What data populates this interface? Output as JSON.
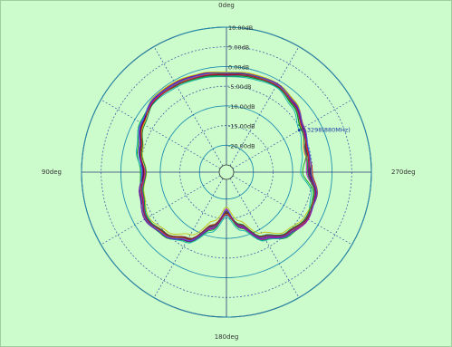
{
  "chart_data": {
    "type": "polar_line",
    "radial_scale": {
      "rings": [
        {
          "value": 10,
          "label": "10.00dB"
        },
        {
          "value": 5,
          "label": "5.00dB"
        },
        {
          "value": 0,
          "label": "0.00dB"
        },
        {
          "value": -5,
          "label": "-5.00dB"
        },
        {
          "value": -10,
          "label": "-10.00dB"
        },
        {
          "value": -15,
          "label": "-15.00dB"
        },
        {
          "value": -20,
          "label": "-20.00dB"
        }
      ],
      "min": -25,
      "max": 10
    },
    "angle_labels": [
      {
        "deg": 0,
        "label": "0deg"
      },
      {
        "deg": 90,
        "label": "90deg"
      },
      {
        "deg": 180,
        "label": "180deg"
      },
      {
        "deg": 270,
        "label": "270deg"
      }
    ],
    "angle_direction": "counterclockwise",
    "grid": true,
    "marker": {
      "text": "-0.3298(880MHz)",
      "angle_deg": 300,
      "value": -5.5,
      "color": "#1a3aa8"
    },
    "angles_deg": [
      0,
      15,
      30,
      45,
      60,
      75,
      90,
      105,
      120,
      135,
      150,
      165,
      180,
      195,
      210,
      225,
      240,
      255,
      270,
      285,
      300,
      315,
      330,
      345
    ],
    "series": [
      {
        "color": "#1010c0",
        "values": [
          -2.0,
          -1.5,
          -1.0,
          -0.8,
          -2.0,
          -4.0,
          -6.0,
          -4.5,
          -3.0,
          -4.5,
          -7.0,
          -12.0,
          -16.0,
          -12.5,
          -7.5,
          -4.5,
          -3.0,
          -3.5,
          -6.0,
          -5.5,
          -4.5,
          -2.5,
          -1.0,
          -1.5
        ]
      },
      {
        "color": "#d01010",
        "values": [
          -1.5,
          -1.0,
          -0.5,
          -0.5,
          -2.5,
          -4.5,
          -5.5,
          -4.0,
          -3.5,
          -5.0,
          -7.5,
          -13.0,
          -17.0,
          -13.0,
          -8.0,
          -5.0,
          -3.5,
          -3.0,
          -5.0,
          -5.5,
          -4.0,
          -2.0,
          -1.0,
          -1.2
        ]
      },
      {
        "color": "#10a010",
        "values": [
          -2.5,
          -2.0,
          -1.5,
          -1.0,
          -1.5,
          -3.5,
          -5.0,
          -4.5,
          -3.0,
          -4.0,
          -6.5,
          -11.5,
          -16.5,
          -12.0,
          -7.0,
          -4.0,
          -3.0,
          -4.0,
          -7.5,
          -6.0,
          -5.0,
          -3.0,
          -1.5,
          -2.0
        ]
      },
      {
        "color": "#101010",
        "values": [
          -1.8,
          -1.2,
          -0.8,
          -0.6,
          -2.2,
          -4.2,
          -5.8,
          -4.2,
          -3.2,
          -4.8,
          -7.2,
          -12.5,
          -16.5,
          -12.8,
          -7.8,
          -4.8,
          -3.2,
          -3.2,
          -5.5,
          -5.8,
          -4.2,
          -2.2,
          -1.2,
          -1.4
        ]
      },
      {
        "color": "#c010c0",
        "values": [
          -2.2,
          -1.6,
          -1.1,
          -0.9,
          -1.8,
          -3.8,
          -6.2,
          -4.8,
          -3.4,
          -4.4,
          -6.8,
          -12.0,
          -17.5,
          -12.2,
          -7.2,
          -4.2,
          -2.8,
          -3.6,
          -6.5,
          -6.2,
          -4.6,
          -2.6,
          -1.3,
          -1.7
        ]
      },
      {
        "color": "#10b0b0",
        "values": [
          -2.6,
          -2.2,
          -1.8,
          -1.4,
          -1.6,
          -3.2,
          -5.2,
          -5.0,
          -3.8,
          -4.2,
          -6.2,
          -11.0,
          -15.5,
          -11.5,
          -6.8,
          -4.2,
          -3.4,
          -4.5,
          -8.0,
          -7.0,
          -5.5,
          -3.4,
          -1.8,
          -2.3
        ]
      },
      {
        "color": "#c0c010",
        "values": [
          -1.4,
          -0.9,
          -0.4,
          -0.3,
          -2.6,
          -4.8,
          -6.5,
          -5.2,
          -4.0,
          -5.5,
          -8.5,
          -14.0,
          -18.0,
          -14.0,
          -9.0,
          -5.6,
          -4.0,
          -3.4,
          -5.2,
          -6.5,
          -4.8,
          -1.8,
          -0.8,
          -1.0
        ]
      },
      {
        "color": "#e07010",
        "values": [
          -2.0,
          -1.4,
          -1.2,
          -1.0,
          -2.4,
          -4.4,
          -6.0,
          -4.4,
          -3.0,
          -4.6,
          -7.0,
          -12.2,
          -16.2,
          -12.6,
          -7.6,
          -4.6,
          -3.0,
          -3.4,
          -5.8,
          -5.6,
          -4.4,
          -2.4,
          -1.2,
          -1.6
        ]
      },
      {
        "color": "#7010b0",
        "values": [
          -1.7,
          -1.1,
          -0.7,
          -0.7,
          -2.0,
          -4.0,
          -5.6,
          -4.0,
          -2.8,
          -4.2,
          -6.6,
          -11.8,
          -16.8,
          -12.4,
          -7.4,
          -4.4,
          -2.9,
          -3.3,
          -5.7,
          -5.3,
          -4.3,
          -2.3,
          -0.9,
          -1.3
        ]
      },
      {
        "color": "#108040",
        "values": [
          -2.4,
          -1.8,
          -1.3,
          -1.2,
          -2.8,
          -4.6,
          -6.4,
          -5.0,
          -3.6,
          -4.9,
          -7.4,
          -12.8,
          -16.8,
          -13.2,
          -8.2,
          -5.2,
          -3.6,
          -3.8,
          -6.2,
          -6.0,
          -4.9,
          -2.8,
          -1.6,
          -1.9
        ]
      },
      {
        "color": "#4060e0",
        "values": [
          -1.6,
          -1.3,
          -0.9,
          -0.5,
          -1.9,
          -3.9,
          -5.4,
          -4.3,
          -3.1,
          -4.3,
          -6.9,
          -12.3,
          -17.2,
          -12.7,
          -7.7,
          -4.7,
          -3.3,
          -3.1,
          -5.3,
          -5.2,
          -4.1,
          -2.1,
          -1.1,
          -1.3
        ]
      },
      {
        "color": "#a01040",
        "values": [
          -2.1,
          -1.7,
          -1.4,
          -1.1,
          -2.3,
          -4.3,
          -5.9,
          -4.6,
          -3.3,
          -4.7,
          -7.3,
          -12.6,
          -16.6,
          -12.9,
          -7.9,
          -4.9,
          -3.3,
          -3.5,
          -5.9,
          -5.7,
          -4.5,
          -2.5,
          -1.4,
          -1.7
        ]
      }
    ]
  }
}
